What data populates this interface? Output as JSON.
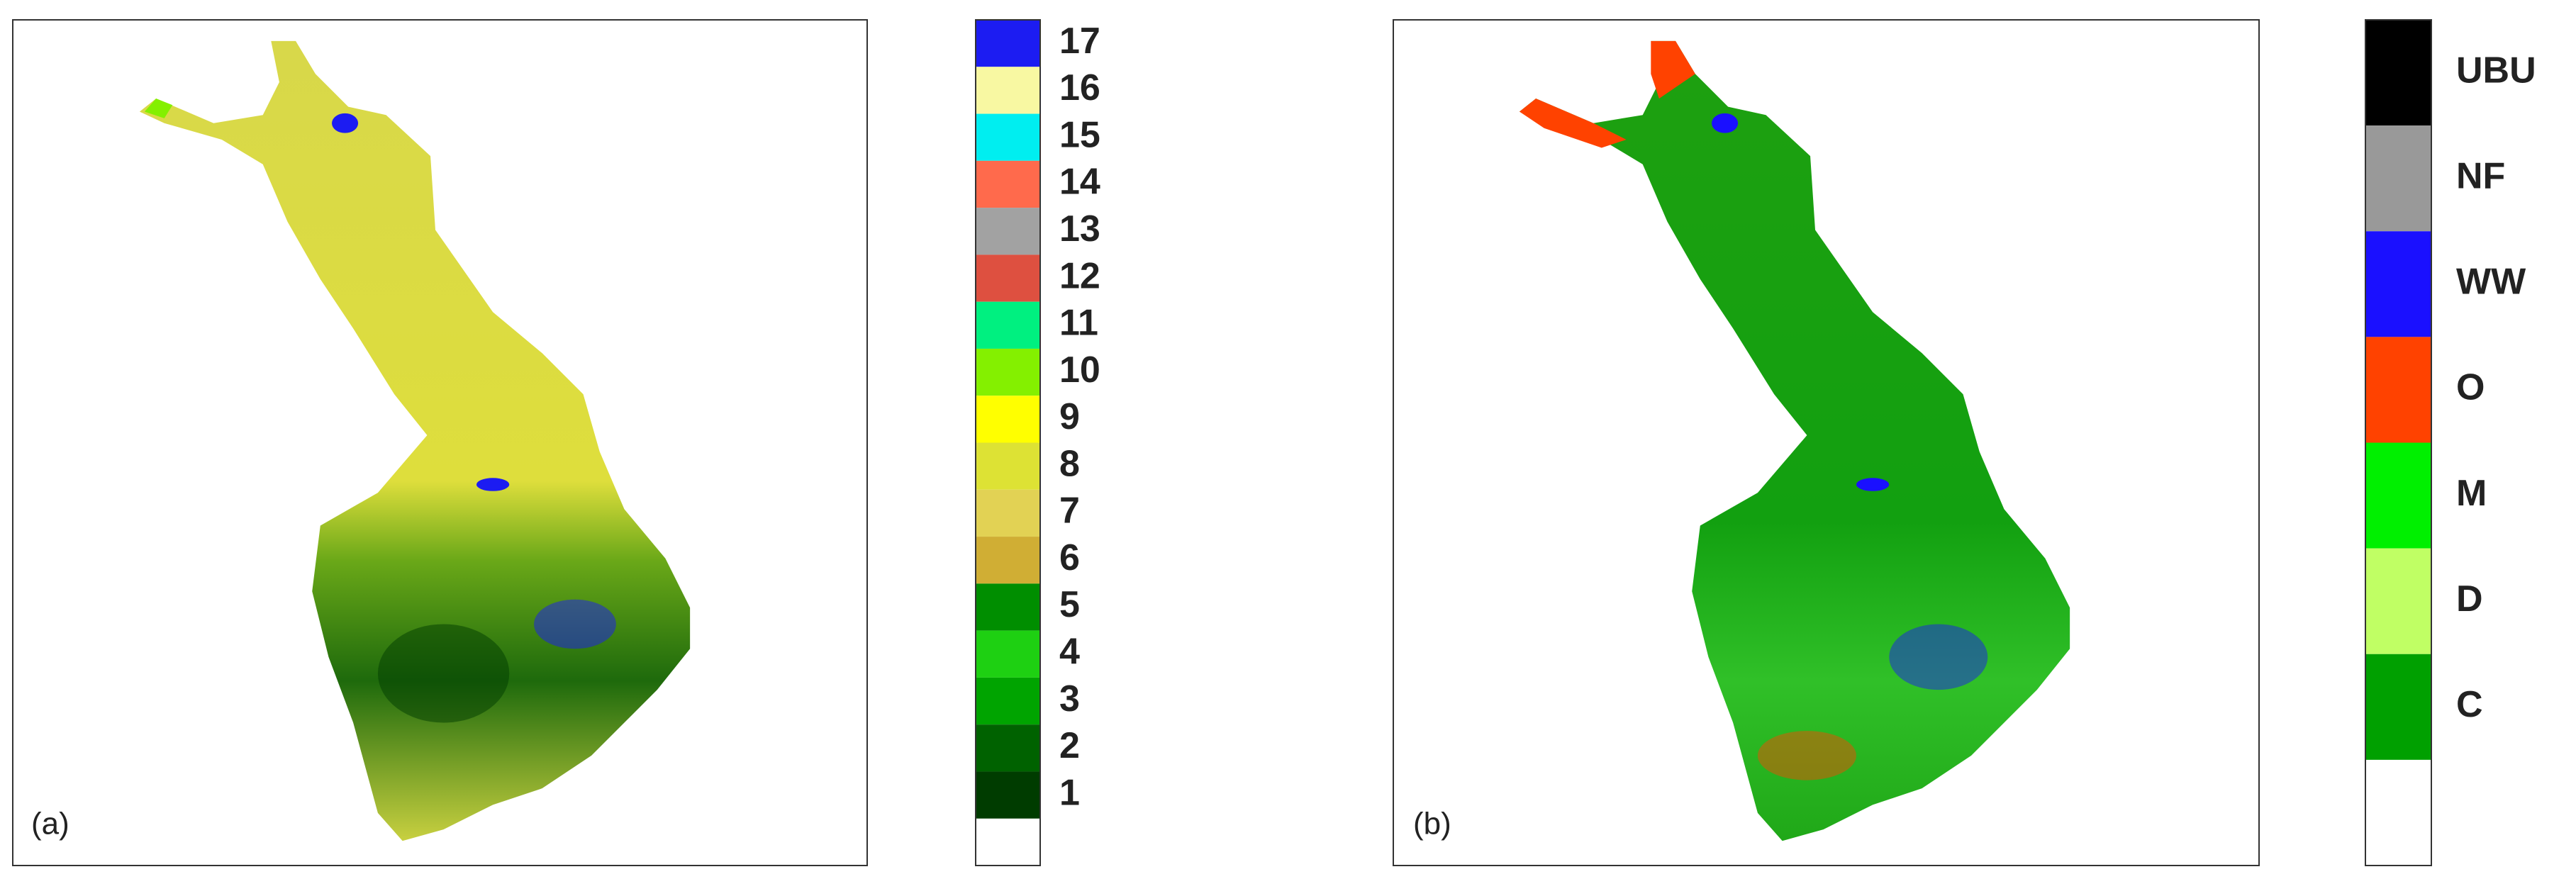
{
  "panels": [
    {
      "label": "(a)",
      "legend": [
        {
          "label": "17",
          "color": "#1c1cf2"
        },
        {
          "label": "16",
          "color": "#f8f8a2"
        },
        {
          "label": "15",
          "color": "#00eef0"
        },
        {
          "label": "14",
          "color": "#ff6a4c"
        },
        {
          "label": "13",
          "color": "#a2a2a2"
        },
        {
          "label": "12",
          "color": "#de5040"
        },
        {
          "label": "11",
          "color": "#00f080"
        },
        {
          "label": "10",
          "color": "#84f000"
        },
        {
          "label": "9",
          "color": "#ffff00"
        },
        {
          "label": "8",
          "color": "#dde234"
        },
        {
          "label": "7",
          "color": "#e2d254"
        },
        {
          "label": "6",
          "color": "#d0ae34"
        },
        {
          "label": "5",
          "color": "#008e00"
        },
        {
          "label": "4",
          "color": "#1ed012"
        },
        {
          "label": "3",
          "color": "#00a400"
        },
        {
          "label": "2",
          "color": "#006200"
        },
        {
          "label": "1",
          "color": "#003c00"
        }
      ]
    },
    {
      "label": "(b)",
      "legend": [
        {
          "label": "UBU",
          "color": "#000000"
        },
        {
          "label": "NF",
          "color": "#999999"
        },
        {
          "label": "WW",
          "color": "#1a10ff"
        },
        {
          "label": "O",
          "color": "#ff4200"
        },
        {
          "label": "M",
          "color": "#00f000"
        },
        {
          "label": "D",
          "color": "#c0ff64"
        },
        {
          "label": "C",
          "color": "#00a000"
        }
      ]
    }
  ]
}
